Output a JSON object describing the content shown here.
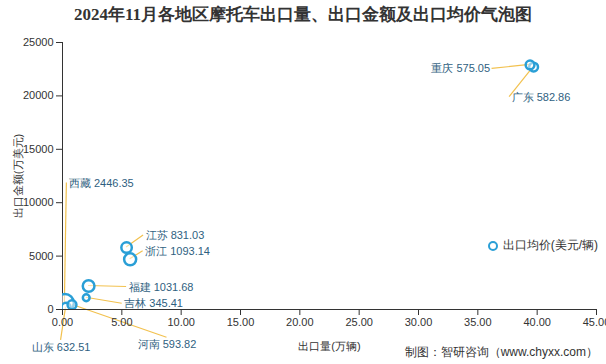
{
  "chart_data": {
    "type": "scatter",
    "title": "2024年11月各地区摩托车出口量、出口金额及出口均价气泡图",
    "x_label": "出口量(万辆)",
    "y_label": "出口金额(万美元)",
    "caption": "制图：智研咨询（www.chyxx.com）",
    "xlim": [
      0,
      45
    ],
    "ylim": [
      0,
      25000
    ],
    "xticks": [
      {
        "value": 0,
        "label": "0.00"
      },
      {
        "value": 5,
        "label": "5.00"
      },
      {
        "value": 10,
        "label": "10.00"
      },
      {
        "value": 15,
        "label": "15.00"
      },
      {
        "value": 20,
        "label": "20.00"
      },
      {
        "value": 25,
        "label": "25.00"
      },
      {
        "value": 30,
        "label": "30.00"
      },
      {
        "value": 35,
        "label": "35.00"
      },
      {
        "value": 40,
        "label": "40.00"
      },
      {
        "value": 45,
        "label": "45.00"
      }
    ],
    "yticks": [
      0,
      5000,
      10000,
      15000,
      20000,
      25000
    ],
    "grid": false,
    "legend": "right",
    "data_labels": true,
    "series": [
      {
        "name": "出口均价(美元/辆)",
        "color": "#2a9fd6",
        "marker": "circle",
        "labels": [
          "重庆",
          "广东",
          "江苏",
          "浙江",
          "福建",
          "吉林",
          "西藏",
          "山东",
          "河南"
        ],
        "x": [
          39.4,
          39.7,
          5.4,
          5.7,
          2.2,
          2.0,
          0.2,
          0.3,
          0.8
        ],
        "values": [
          22900,
          22700,
          5800,
          4700,
          2200,
          1100,
          600,
          200,
          450
        ],
        "sizes": [
          575.05,
          582.86,
          831.03,
          1093.14,
          1031.68,
          345.41,
          2446.35,
          632.51,
          593.82
        ]
      }
    ]
  }
}
